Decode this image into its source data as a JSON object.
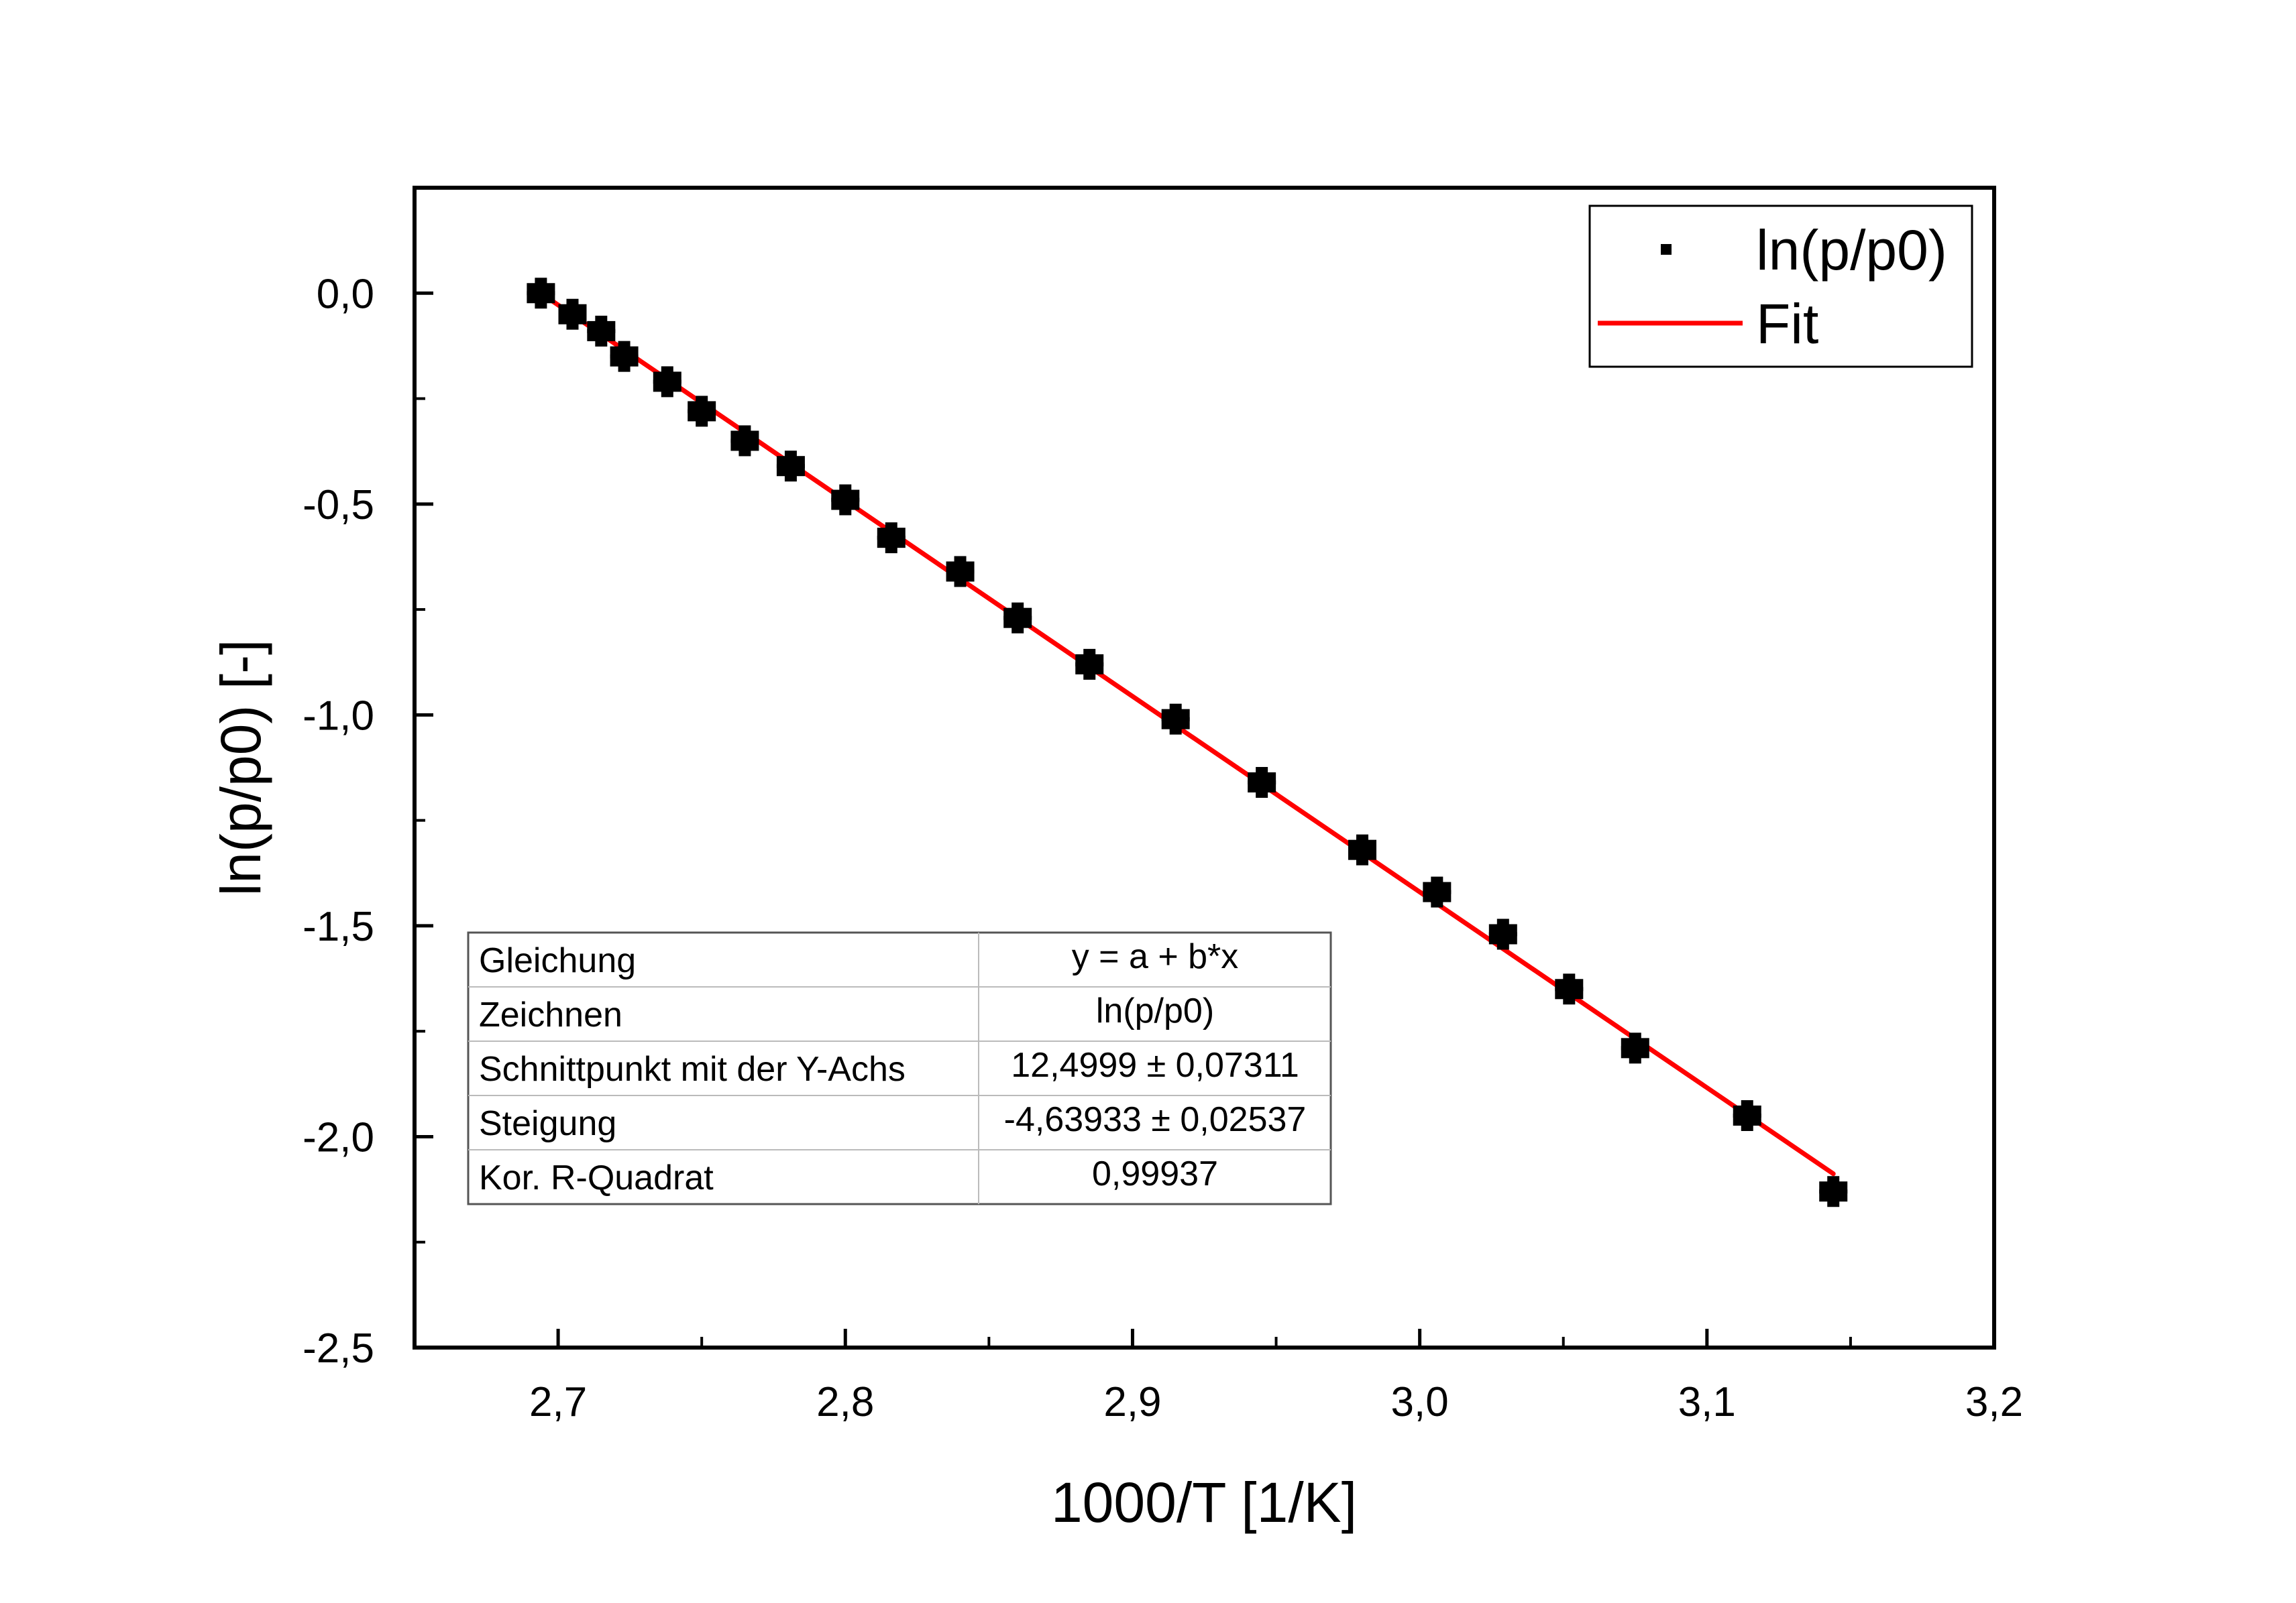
{
  "chart_data": {
    "type": "scatter",
    "xlabel": "1000/T [1/K]",
    "ylabel": "ln(p/p0) [-]",
    "xlim": [
      2.65,
      3.2
    ],
    "ylim": [
      -2.5,
      0.25
    ],
    "x_ticks": [
      "2,7",
      "2,8",
      "2,9",
      "3,0",
      "3,1",
      "3,2"
    ],
    "y_ticks": [
      "0,0",
      "-0,5",
      "-1,0",
      "-1,5",
      "-2,0",
      "-2,5"
    ],
    "grid": false,
    "legend": {
      "position": "top-right",
      "entries": [
        "ln(p/p0)",
        "Fit"
      ]
    },
    "series": [
      {
        "name": "ln(p/p0)",
        "kind": "scatter",
        "color": "#000000",
        "x": [
          2.694,
          2.705,
          2.715,
          2.723,
          2.738,
          2.75,
          2.765,
          2.781,
          2.8,
          2.816,
          2.84,
          2.86,
          2.885,
          2.915,
          2.945,
          2.98,
          3.006,
          3.029,
          3.052,
          3.075,
          3.114,
          3.144
        ],
        "y": [
          0.0,
          -0.05,
          -0.09,
          -0.15,
          -0.21,
          -0.28,
          -0.35,
          -0.41,
          -0.49,
          -0.58,
          -0.66,
          -0.77,
          -0.88,
          -1.01,
          -1.16,
          -1.32,
          -1.42,
          -1.52,
          -1.65,
          -1.79,
          -1.95,
          -2.13
        ]
      },
      {
        "name": "Fit",
        "kind": "line",
        "color": "#ff0000",
        "x": [
          2.694,
          3.144
        ],
        "y": [
          -0.0002,
          -2.0879
        ]
      }
    ],
    "fit_table": {
      "rows": [
        {
          "label": "Gleichung",
          "value": "y = a + b*x"
        },
        {
          "label": "Zeichnen",
          "value": "ln(p/p0)"
        },
        {
          "label": "Schnittpunkt mit der Y-Achs",
          "value": "12,4999 ± 0,07311"
        },
        {
          "label": "Steigung",
          "value": "-4,63933 ± 0,02537"
        },
        {
          "label": "Kor. R-Quadrat",
          "value": "0,99937"
        }
      ]
    }
  }
}
